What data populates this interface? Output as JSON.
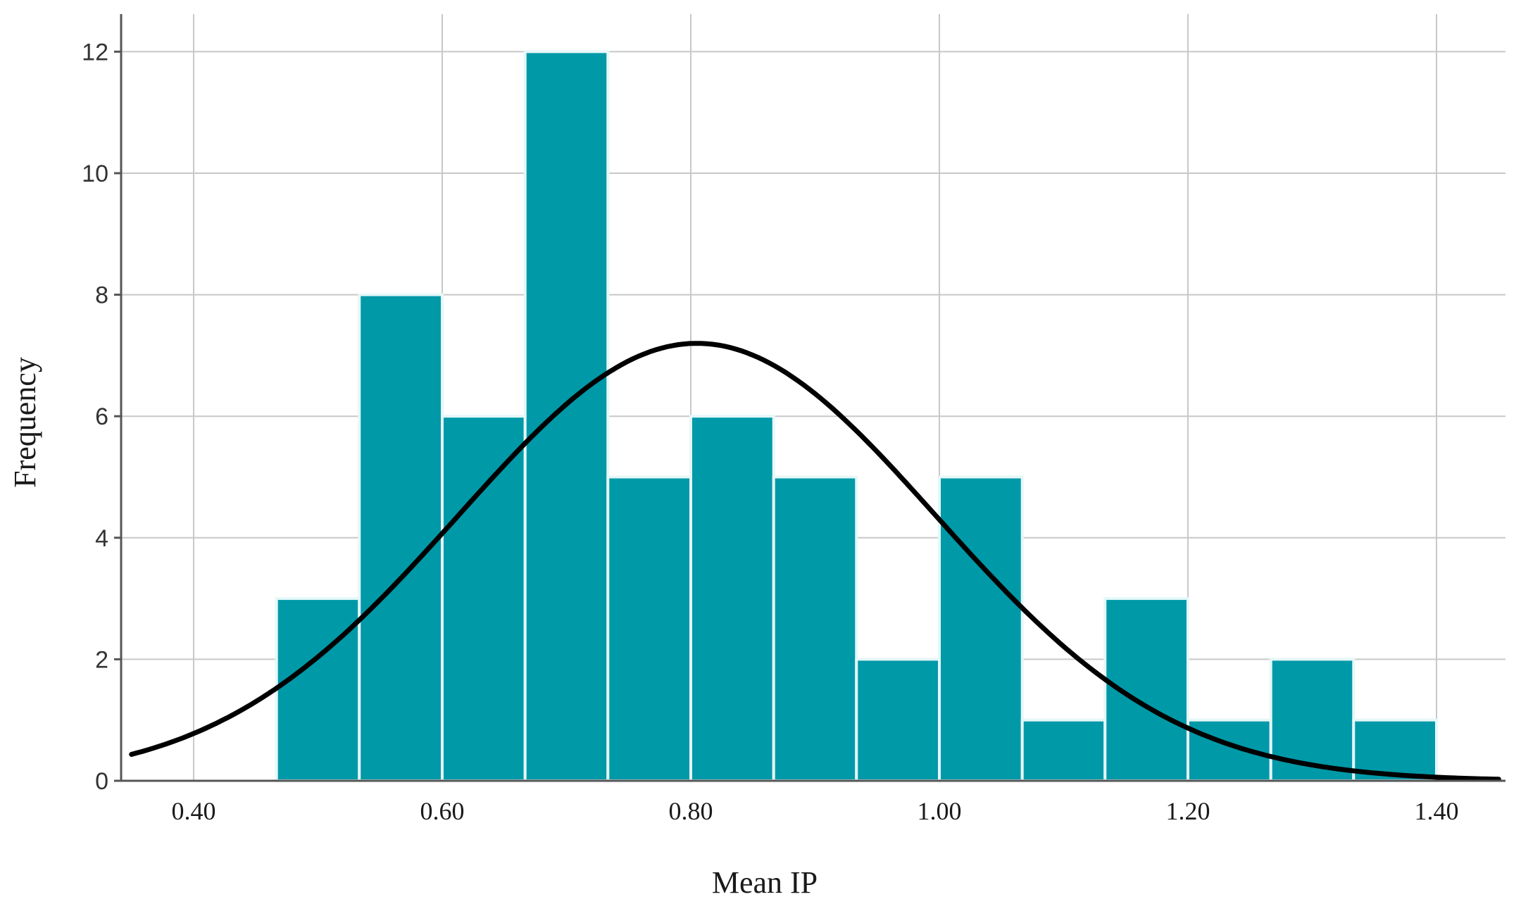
{
  "chart_data": {
    "type": "bar",
    "subtype": "histogram",
    "title": "",
    "xlabel": "Mean IP",
    "ylabel": "Frequency",
    "xlim": [
      0.35,
      1.45
    ],
    "ylim": [
      0,
      12.6
    ],
    "x_ticks": [
      {
        "value": 0.4,
        "label": "0.40"
      },
      {
        "value": 0.6,
        "label": "0.60"
      },
      {
        "value": 0.8,
        "label": "0.80"
      },
      {
        "value": 1.0,
        "label": "1.00"
      },
      {
        "value": 1.2,
        "label": "1.20"
      },
      {
        "value": 1.4,
        "label": "1.40"
      }
    ],
    "y_ticks": [
      {
        "value": 0,
        "label": "0"
      },
      {
        "value": 2,
        "label": "2"
      },
      {
        "value": 4,
        "label": "4"
      },
      {
        "value": 6,
        "label": "6"
      },
      {
        "value": 8,
        "label": "8"
      },
      {
        "value": 10,
        "label": "10"
      },
      {
        "value": 12,
        "label": "12"
      }
    ],
    "grid": true,
    "bin_width": 0.0667,
    "bins": [
      {
        "x0": 0.4667,
        "x1": 0.5333,
        "count": 3
      },
      {
        "x0": 0.5333,
        "x1": 0.6,
        "count": 8
      },
      {
        "x0": 0.6,
        "x1": 0.6667,
        "count": 6
      },
      {
        "x0": 0.6667,
        "x1": 0.7333,
        "count": 12
      },
      {
        "x0": 0.7333,
        "x1": 0.8,
        "count": 5
      },
      {
        "x0": 0.8,
        "x1": 0.8667,
        "count": 6
      },
      {
        "x0": 0.8667,
        "x1": 0.9333,
        "count": 5
      },
      {
        "x0": 0.9333,
        "x1": 1.0,
        "count": 2
      },
      {
        "x0": 1.0,
        "x1": 1.0667,
        "count": 5
      },
      {
        "x0": 1.0667,
        "x1": 1.1333,
        "count": 1
      },
      {
        "x0": 1.1333,
        "x1": 1.2,
        "count": 3
      },
      {
        "x0": 1.2,
        "x1": 1.2667,
        "count": 1
      },
      {
        "x0": 1.2667,
        "x1": 1.3333,
        "count": 2
      },
      {
        "x0": 1.3333,
        "x1": 1.4,
        "count": 1
      }
    ],
    "normal_curve": {
      "mean": 0.805,
      "std": 0.192,
      "peak": 7.2
    },
    "colors": {
      "bar": "#0099a8",
      "bar_edge": "#e6f7f8",
      "curve": "#000000",
      "grid": "#c8c8c8",
      "axis": "#555555"
    }
  }
}
